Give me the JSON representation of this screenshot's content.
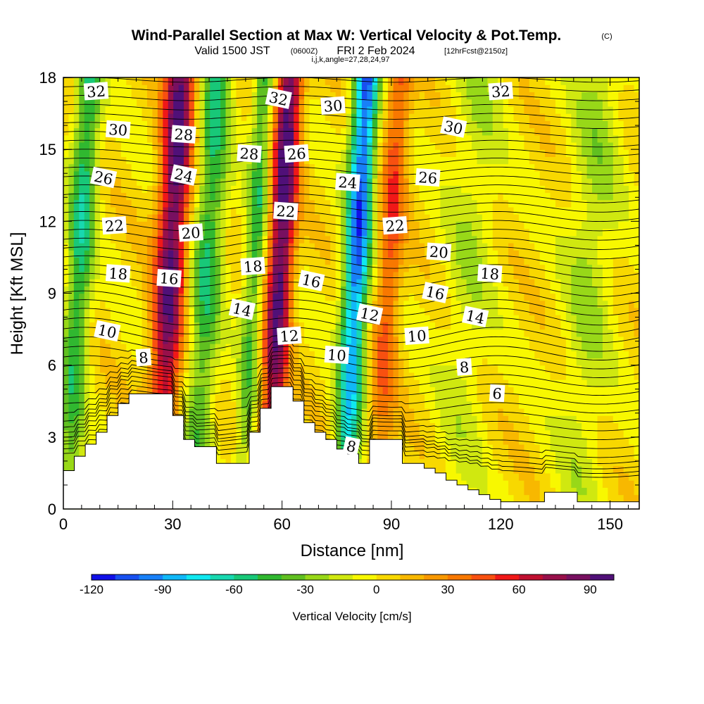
{
  "header": {
    "title": "Wind-Parallel Section at Max W: Vertical Velocity & Pot.Temp.",
    "copyright": "(C)",
    "valid_prefix": "Valid 1500 JST",
    "valid_zulu": "(0600Z)",
    "valid_date": "FRI 2 Feb 2024",
    "forecast": "[12hrFcst@2150z]",
    "indices": "i,j,k,angle=27,28,24,97"
  },
  "colorbar": {
    "label": "Vertical Velocity [cm/s]",
    "tick_labels": [
      "-120",
      "-90",
      "-60",
      "-30",
      "0",
      "30",
      "60",
      "90"
    ],
    "colors": [
      "#1010e8",
      "#1850f0",
      "#1880f8",
      "#10b8f8",
      "#10e8f0",
      "#18d8b0",
      "#18c878",
      "#30b830",
      "#60c020",
      "#98d818",
      "#d0e810",
      "#f8f800",
      "#f8d800",
      "#f8b800",
      "#f89800",
      "#f87800",
      "#f85010",
      "#f01818",
      "#c01030",
      "#98104a",
      "#781060",
      "#501078"
    ]
  },
  "chart_data": {
    "type": "heatmap",
    "xlabel": "Distance [nm]",
    "ylabel": "Height [Kft MSL]",
    "xlim": [
      0,
      158
    ],
    "ylim": [
      0,
      18
    ],
    "x_ticks": [
      0,
      30,
      60,
      90,
      120,
      150
    ],
    "y_ticks": [
      0,
      3,
      6,
      9,
      12,
      15,
      18
    ],
    "x_tick_labels": [
      "0",
      "30",
      "60",
      "90",
      "120",
      "150"
    ],
    "y_tick_labels": [
      "0",
      "3",
      "6",
      "9",
      "12",
      "15",
      "18"
    ],
    "colorbar_range_cm_s": [
      -120,
      110
    ],
    "w_features": [
      {
        "x": 3,
        "w": -60,
        "width": 2.5
      },
      {
        "x": 28,
        "w": 95,
        "width": 3
      },
      {
        "x": 38,
        "w": -55,
        "width": 3
      },
      {
        "x": 58,
        "w": 100,
        "width": 2.5
      },
      {
        "x": 51,
        "w": -50,
        "width": 2
      },
      {
        "x": 79,
        "w": -110,
        "width": 2.5
      },
      {
        "x": 88,
        "w": 45,
        "width": 2.5
      },
      {
        "x": 110,
        "w": -20,
        "width": 5
      },
      {
        "x": 143,
        "w": -25,
        "width": 5
      }
    ],
    "terrain_kft": {
      "x": [
        0,
        3,
        6,
        9,
        12,
        15,
        18,
        21,
        24,
        27,
        30,
        33,
        36,
        39,
        42,
        45,
        48,
        51,
        54,
        57,
        60,
        63,
        66,
        69,
        72,
        75,
        78,
        81,
        84,
        87,
        90,
        93,
        96,
        99,
        102,
        105,
        108,
        111,
        114,
        117,
        120,
        123,
        126,
        129,
        132,
        135,
        138,
        141,
        144,
        147,
        150,
        153,
        156,
        158
      ],
      "h": [
        1.6,
        2.2,
        2.7,
        3.2,
        3.9,
        4.4,
        4.8,
        4.8,
        4.8,
        4.8,
        3.9,
        2.9,
        2.6,
        2.6,
        1.9,
        1.9,
        1.9,
        3.2,
        4.2,
        5.1,
        5.1,
        4.5,
        3.6,
        3.2,
        2.9,
        2.5,
        2.3,
        1.9,
        2.9,
        2.9,
        2.9,
        1.9,
        1.9,
        1.7,
        1.5,
        1.2,
        1.0,
        0.8,
        0.6,
        0.4,
        0.3,
        0.3,
        0.3,
        0.3,
        0.7,
        0.7,
        0.7,
        0.3,
        0.3,
        0.3,
        0.3,
        0.3,
        0.3,
        0.3
      ]
    },
    "theta_contour_labels": [
      {
        "text": "32",
        "x": 9,
        "y": 17.4
      },
      {
        "text": "30",
        "x": 15,
        "y": 15.8
      },
      {
        "text": "26",
        "x": 11,
        "y": 13.8
      },
      {
        "text": "22",
        "x": 14,
        "y": 11.8
      },
      {
        "text": "18",
        "x": 15,
        "y": 9.8
      },
      {
        "text": "10",
        "x": 12,
        "y": 7.4
      },
      {
        "text": "8",
        "x": 22,
        "y": 6.3
      },
      {
        "text": "28",
        "x": 33,
        "y": 15.6
      },
      {
        "text": "24",
        "x": 33,
        "y": 13.9
      },
      {
        "text": "20",
        "x": 35,
        "y": 11.5
      },
      {
        "text": "16",
        "x": 29,
        "y": 9.6
      },
      {
        "text": "14",
        "x": 49,
        "y": 8.3
      },
      {
        "text": "18",
        "x": 52,
        "y": 10.1
      },
      {
        "text": "28",
        "x": 51,
        "y": 14.8
      },
      {
        "text": "32",
        "x": 59,
        "y": 17.1
      },
      {
        "text": "26",
        "x": 64,
        "y": 14.8
      },
      {
        "text": "22",
        "x": 61,
        "y": 12.4
      },
      {
        "text": "16",
        "x": 68,
        "y": 9.5
      },
      {
        "text": "12",
        "x": 62,
        "y": 7.2
      },
      {
        "text": "10",
        "x": 75,
        "y": 6.4
      },
      {
        "text": "8",
        "x": 79,
        "y": 2.6
      },
      {
        "text": "30",
        "x": 74,
        "y": 16.8
      },
      {
        "text": "24",
        "x": 78,
        "y": 13.6
      },
      {
        "text": "12",
        "x": 84,
        "y": 8.1
      },
      {
        "text": "22",
        "x": 91,
        "y": 11.8
      },
      {
        "text": "20",
        "x": 103,
        "y": 10.7
      },
      {
        "text": "16",
        "x": 102,
        "y": 9.0
      },
      {
        "text": "10",
        "x": 97,
        "y": 7.2
      },
      {
        "text": "26",
        "x": 100,
        "y": 13.8
      },
      {
        "text": "30",
        "x": 107,
        "y": 15.9
      },
      {
        "text": "32",
        "x": 120,
        "y": 17.4
      },
      {
        "text": "18",
        "x": 117,
        "y": 9.8
      },
      {
        "text": "14",
        "x": 113,
        "y": 8.0
      },
      {
        "text": "8",
        "x": 110,
        "y": 5.9
      },
      {
        "text": "6",
        "x": 119,
        "y": 4.8
      }
    ]
  }
}
